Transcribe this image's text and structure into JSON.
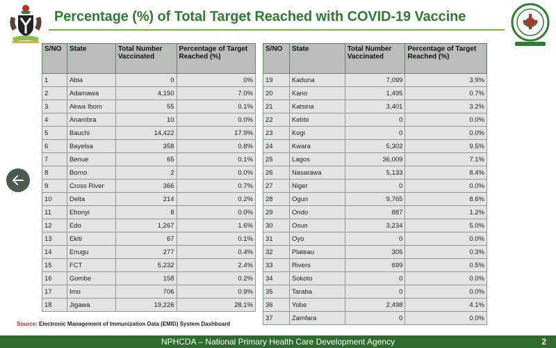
{
  "title": "Percentage (%) of Total Target Reached with COVID-19 Vaccine",
  "columns": [
    "S/NO",
    "State",
    "Total Number Vaccinated",
    "Percentage of Target Reached (%)"
  ],
  "table_left": [
    [
      "1",
      "Abia",
      "0",
      "0%"
    ],
    [
      "2",
      "Adamawa",
      "4,150",
      "7.0%"
    ],
    [
      "3",
      "Akwa Ibom",
      "55",
      "0.1%"
    ],
    [
      "4",
      "Anambra",
      "10",
      "0.0%"
    ],
    [
      "5",
      "Bauchi",
      "14,422",
      "17.9%"
    ],
    [
      "6",
      "Bayelsa",
      "358",
      "0.8%"
    ],
    [
      "7",
      "Benue",
      "65",
      "0.1%"
    ],
    [
      "8",
      "Borno",
      "2",
      "0.0%"
    ],
    [
      "9",
      "Cross River",
      "366",
      "0.7%"
    ],
    [
      "10",
      "Delta",
      "214",
      "0.2%"
    ],
    [
      "11",
      "Ebonyi",
      "8",
      "0.0%"
    ],
    [
      "12",
      "Edo",
      "1,267",
      "1.6%"
    ],
    [
      "13",
      "Ekiti",
      "67",
      "0.1%"
    ],
    [
      "14",
      "Enugu",
      "277",
      "0.4%"
    ],
    [
      "15",
      "FCT",
      "5,232",
      "2.4%"
    ],
    [
      "16",
      "Gombe",
      "158",
      "0.2%"
    ],
    [
      "17",
      "Imo",
      "706",
      "0.9%"
    ],
    [
      "18",
      "Jigawa",
      "19,226",
      "28.1%"
    ]
  ],
  "table_right": [
    [
      "19",
      "Kaduna",
      "7,099",
      "3.9%"
    ],
    [
      "20",
      "Kano",
      "1,495",
      "0.7%"
    ],
    [
      "21",
      "Katsina",
      "3,401",
      "3.2%"
    ],
    [
      "22",
      "Kebbi",
      "0",
      "0.0%"
    ],
    [
      "23",
      "Kogi",
      "0",
      "0.0%"
    ],
    [
      "24",
      "Kwara",
      "5,302",
      "9.5%"
    ],
    [
      "25",
      "Lagos",
      "36,009",
      "7.1%"
    ],
    [
      "26",
      "Nasarawa",
      "5,133",
      "8.4%"
    ],
    [
      "27",
      "Niger",
      "0",
      "0.0%"
    ],
    [
      "28",
      "Ogun",
      "9,765",
      "8.6%"
    ],
    [
      "29",
      "Ondo",
      "887",
      "1.2%"
    ],
    [
      "30",
      "Osun",
      "3,234",
      "5.0%"
    ],
    [
      "31",
      "Oyo",
      "0",
      "0.0%"
    ],
    [
      "32",
      "Plateau",
      "305",
      "0.3%"
    ],
    [
      "33",
      "Rivers",
      "699",
      "0.5%"
    ],
    [
      "34",
      "Sokoto",
      "0",
      "0.0%"
    ],
    [
      "35",
      "Taraba",
      "0",
      "0.0%"
    ],
    [
      "36",
      "Yobe",
      "2,498",
      "4.1%"
    ],
    [
      "37",
      "Zamfara",
      "0",
      "0.0%"
    ]
  ],
  "source_label": "Source:",
  "source_text": "Electronic Management of Immunization Data (EMID) System Dashboard",
  "footer_text": "NPHCDA – National Primary Health Care Development Agency",
  "page_number": "2",
  "icons": {
    "left_logo": "nigeria-coat-of-arms-icon",
    "right_logo": "nphcda-seal-icon",
    "back": "arrow-left-icon"
  },
  "colors": {
    "title": "#2e7d32",
    "header_bg": "#b9bfb8",
    "cell_bg": "#e2e4e1",
    "footer_bg": "#2f6b2d",
    "source_label": "#c62828"
  }
}
